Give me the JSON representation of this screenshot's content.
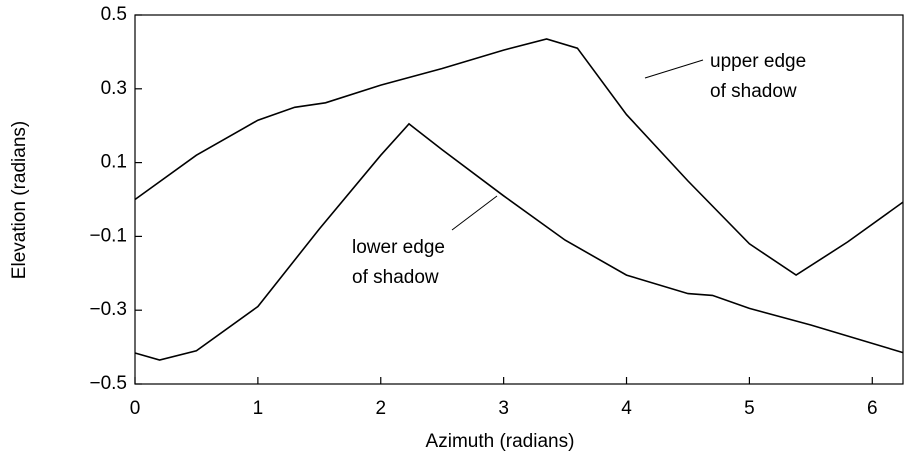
{
  "chart_data": {
    "type": "line",
    "x_label": "Azimuth (radians)",
    "y_label": "Elevation (radians)",
    "xlim": [
      0,
      6.25
    ],
    "ylim": [
      -0.5,
      0.5
    ],
    "xticks": [
      0,
      1,
      2,
      3,
      4,
      5,
      6
    ],
    "yticks": [
      0.5,
      0.3,
      0.1,
      {
        "value": -0.1,
        "label": "−0.1"
      },
      {
        "value": -0.3,
        "label": "−0.3"
      },
      {
        "value": -0.5,
        "label": "−0.5"
      }
    ],
    "series": [
      {
        "name": "upper edge of shadow",
        "color": "#000000",
        "x": [
          0,
          0.5,
          1,
          1.3,
          1.55,
          2.0,
          2.5,
          3.0,
          3.35,
          3.6,
          4.0,
          4.5,
          5.0,
          5.38,
          5.8,
          6.25
        ],
        "values": [
          0.0,
          0.12,
          0.215,
          0.25,
          0.262,
          0.31,
          0.355,
          0.405,
          0.435,
          0.41,
          0.23,
          0.05,
          -0.12,
          -0.205,
          -0.115,
          -0.007
        ]
      },
      {
        "name": "lower edge of shadow",
        "color": "#000000",
        "x": [
          0,
          0.2,
          0.5,
          1.0,
          1.5,
          2.0,
          2.23,
          2.5,
          3.0,
          3.5,
          4.0,
          4.5,
          4.7,
          5.0,
          5.5,
          6.25
        ],
        "values": [
          -0.416,
          -0.435,
          -0.41,
          -0.29,
          -0.08,
          0.12,
          0.205,
          0.135,
          0.01,
          -0.11,
          -0.205,
          -0.255,
          -0.26,
          -0.295,
          -0.34,
          -0.415
        ]
      }
    ],
    "annotations": [
      {
        "lines": [
          "upper edge",
          "of shadow"
        ]
      },
      {
        "lines": [
          "lower edge",
          "of shadow"
        ]
      }
    ]
  }
}
